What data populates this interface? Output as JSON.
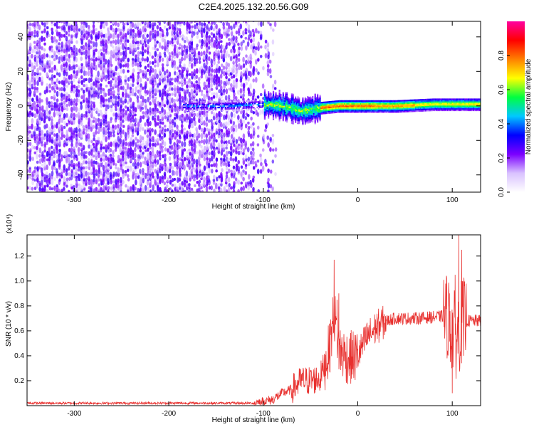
{
  "title": "C2E4.2025.132.20.56.G09",
  "colors": {
    "line": "#e8302e",
    "axis": "#000000",
    "background": "#ffffff"
  },
  "chart_data": [
    {
      "type": "heatmap",
      "title": "C2E4.2025.132.20.56.G09",
      "xlabel": "Height of straight line (km)",
      "ylabel": "Frequency (Hz)",
      "xlim": [
        -350,
        130
      ],
      "ylim": [
        -50,
        49
      ],
      "xticks": [
        -300,
        -200,
        -100,
        0,
        100
      ],
      "yticks": [
        -40,
        -20,
        0,
        20,
        40
      ],
      "colorbar": {
        "label": "Normalized spectral amplitude",
        "range": [
          0,
          1
        ],
        "ticks": [
          "0.0",
          "0.2",
          "0.4",
          "0.6",
          "0.8"
        ],
        "colormap": [
          "#ffffff",
          "#d9c2ff",
          "#7b00ff",
          "#0000ff",
          "#00c8ff",
          "#00ff40",
          "#ffff00",
          "#ff8000",
          "#ff0000",
          "#ff00a0"
        ]
      },
      "features": {
        "noise_region_x": [
          -350,
          -95
        ],
        "ridge_center_hz": [
          [
            -180,
            0
          ],
          [
            -140,
            0
          ],
          [
            -100,
            1
          ],
          [
            -80,
            0
          ],
          [
            -60,
            -3
          ],
          [
            -40,
            -1
          ],
          [
            -20,
            0
          ],
          [
            0,
            0
          ],
          [
            40,
            0
          ],
          [
            80,
            1
          ],
          [
            100,
            1
          ],
          [
            130,
            1
          ]
        ]
      }
    },
    {
      "type": "line",
      "xlabel": "Height of straight line (km)",
      "ylabel": "SNR (10 * v/v)",
      "y_scale_label": "(x10⁴)",
      "xlim": [
        -350,
        130
      ],
      "ylim": [
        0,
        1.37
      ],
      "xticks": [
        -300,
        -200,
        -100,
        0,
        100
      ],
      "yticks": [
        0.2,
        0.4,
        0.6,
        0.8,
        1.0,
        1.2
      ],
      "series": [
        {
          "trend": [
            [
              -350,
              0.02
            ],
            [
              -200,
              0.02
            ],
            [
              -110,
              0.02
            ],
            [
              -100,
              0.03
            ],
            [
              -90,
              0.05
            ],
            [
              -80,
              0.1
            ],
            [
              -70,
              0.13
            ],
            [
              -60,
              0.2
            ],
            [
              -50,
              0.2
            ],
            [
              -40,
              0.22
            ],
            [
              -30,
              0.45
            ],
            [
              -25,
              0.75
            ],
            [
              -20,
              0.45
            ],
            [
              -10,
              0.38
            ],
            [
              0,
              0.4
            ],
            [
              10,
              0.55
            ],
            [
              20,
              0.63
            ],
            [
              30,
              0.68
            ],
            [
              40,
              0.7
            ],
            [
              60,
              0.7
            ],
            [
              80,
              0.71
            ],
            [
              95,
              0.72
            ],
            [
              100,
              0.6
            ],
            [
              105,
              0.55
            ],
            [
              110,
              0.68
            ],
            [
              120,
              0.68
            ],
            [
              130,
              0.68
            ]
          ],
          "peaks": [
            [
              -25,
              1.17
            ],
            [
              -22,
              0.85
            ],
            [
              -20,
              0.9
            ],
            [
              97,
              0.9
            ],
            [
              100,
              0.1
            ],
            [
              103,
              1.05
            ],
            [
              107,
              1.37
            ],
            [
              108,
              0.3
            ],
            [
              110,
              1.25
            ],
            [
              112,
              0.4
            ]
          ]
        }
      ]
    }
  ]
}
